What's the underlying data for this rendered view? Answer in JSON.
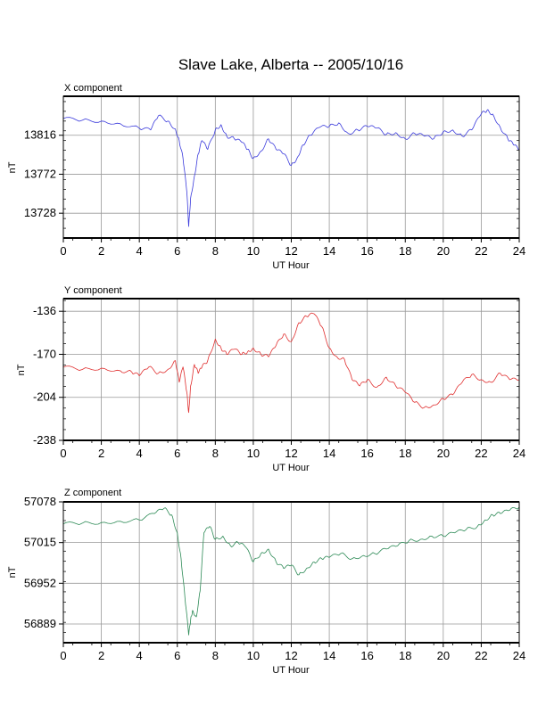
{
  "title": "Slave Lake, Alberta -- 2005/10/16",
  "colors": {
    "x": "#3b3bdc",
    "y": "#e03030",
    "z": "#2e8b57",
    "grid": "#999999",
    "axis": "#000000"
  },
  "chart_data": [
    {
      "type": "line",
      "title": "X component",
      "xlabel": "UT Hour",
      "ylabel": "nT",
      "xlim": [
        0,
        24
      ],
      "ylim": [
        13700,
        13860
      ],
      "xticks": [
        "0",
        "2",
        "4",
        "6",
        "8",
        "10",
        "12",
        "14",
        "16",
        "18",
        "20",
        "22",
        "24"
      ],
      "yticks": [
        "13816",
        "13772",
        "13728"
      ],
      "yticks_values": [
        13816,
        13772,
        13728
      ],
      "grid": true,
      "series": [
        {
          "color": "#3b3bdc",
          "x": [
            0,
            1,
            2,
            3,
            4,
            4.6,
            5,
            5.5,
            5.9,
            6.1,
            6.3,
            6.5,
            6.6,
            6.7,
            6.9,
            7.1,
            7.3,
            7.6,
            8,
            8.3,
            8.6,
            9,
            9.4,
            9.7,
            10,
            10.4,
            10.8,
            11.2,
            11.6,
            12,
            12.3,
            12.6,
            13,
            13.5,
            14,
            14.5,
            15,
            15.5,
            16,
            16.5,
            17,
            17.5,
            18,
            18.5,
            19,
            19.5,
            20,
            20.5,
            21,
            21.5,
            22,
            22.3,
            22.6,
            23,
            23.4,
            23.7,
            24
          ],
          "y": [
            13835,
            13833,
            13832,
            13829,
            13824,
            13822,
            13838,
            13832,
            13823,
            13810,
            13790,
            13752,
            13713,
            13745,
            13770,
            13795,
            13810,
            13800,
            13822,
            13828,
            13815,
            13812,
            13808,
            13800,
            13790,
            13798,
            13812,
            13800,
            13795,
            13782,
            13790,
            13805,
            13816,
            13825,
            13826,
            13830,
            13818,
            13822,
            13826,
            13824,
            13817,
            13819,
            13812,
            13818,
            13815,
            13812,
            13820,
            13822,
            13815,
            13822,
            13840,
            13844,
            13840,
            13825,
            13812,
            13805,
            13800
          ]
        }
      ]
    },
    {
      "type": "line",
      "title": "Y component",
      "xlabel": "UT Hour",
      "ylabel": "nT",
      "xlim": [
        0,
        24
      ],
      "ylim": [
        -238,
        -126
      ],
      "xticks": [
        "0",
        "2",
        "4",
        "6",
        "8",
        "10",
        "12",
        "14",
        "16",
        "18",
        "20",
        "22",
        "24"
      ],
      "yticks": [
        "-136",
        "-170",
        "-204",
        "-238"
      ],
      "yticks_values": [
        -136,
        -170,
        -204,
        -238
      ],
      "grid": true,
      "series": [
        {
          "color": "#e03030",
          "x": [
            0,
            1,
            2,
            3,
            3.6,
            4,
            4.5,
            5,
            5.5,
            5.9,
            6.1,
            6.3,
            6.5,
            6.6,
            6.7,
            6.9,
            7.1,
            7.3,
            7.6,
            8,
            8.3,
            8.6,
            9,
            9.4,
            9.7,
            10,
            10.4,
            10.8,
            11.2,
            11.6,
            12,
            12.4,
            12.8,
            13.2,
            13.6,
            14,
            14.4,
            14.8,
            15.2,
            15.6,
            16,
            16.5,
            17,
            17.5,
            18,
            18.5,
            19,
            19.5,
            20,
            20.5,
            21,
            21.5,
            22,
            22.5,
            23,
            23.5,
            24
          ],
          "y": [
            -180,
            -182,
            -181,
            -183,
            -184,
            -187,
            -180,
            -185,
            -182,
            -175,
            -192,
            -180,
            -200,
            -216,
            -195,
            -178,
            -185,
            -180,
            -175,
            -158,
            -165,
            -170,
            -166,
            -170,
            -168,
            -165,
            -170,
            -172,
            -163,
            -154,
            -160,
            -145,
            -140,
            -138,
            -148,
            -165,
            -172,
            -174,
            -190,
            -195,
            -190,
            -196,
            -188,
            -195,
            -200,
            -208,
            -212,
            -210,
            -205,
            -202,
            -192,
            -186,
            -190,
            -192,
            -185,
            -190,
            -190
          ]
        }
      ]
    },
    {
      "type": "line",
      "title": "Z component",
      "xlabel": "UT Hour",
      "ylabel": "nT",
      "xlim": [
        0,
        24
      ],
      "ylim": [
        56860,
        57078
      ],
      "xticks": [
        "0",
        "2",
        "4",
        "6",
        "8",
        "10",
        "12",
        "14",
        "16",
        "18",
        "20",
        "22",
        "24"
      ],
      "yticks": [
        "57078",
        "57015",
        "56952",
        "56889"
      ],
      "yticks_values": [
        57078,
        57015,
        56952,
        56889
      ],
      "grid": true,
      "series": [
        {
          "color": "#2e8b57",
          "x": [
            0,
            1,
            2,
            3,
            4,
            4.8,
            5.3,
            5.7,
            6,
            6.2,
            6.4,
            6.6,
            6.7,
            6.8,
            7,
            7.2,
            7.4,
            7.7,
            8,
            8.4,
            8.8,
            9.2,
            9.6,
            10,
            10.4,
            10.8,
            11.2,
            11.6,
            12,
            12.4,
            12.8,
            13.2,
            13.6,
            14,
            14.6,
            15.2,
            15.8,
            16.4,
            17,
            17.6,
            18.2,
            18.8,
            19.4,
            20,
            20.6,
            21.2,
            21.8,
            22.2,
            22.6,
            23,
            23.5,
            24
          ],
          "y": [
            57044,
            57045,
            57046,
            57048,
            57050,
            57060,
            57068,
            57058,
            57030,
            56990,
            56930,
            56872,
            56895,
            56910,
            56900,
            56940,
            57030,
            57040,
            57020,
            57025,
            57010,
            57015,
            57008,
            56985,
            56998,
            57005,
            56985,
            56975,
            56980,
            56965,
            56975,
            56985,
            56990,
            56992,
            56998,
            56990,
            56995,
            56998,
            57005,
            57010,
            57018,
            57020,
            57025,
            57025,
            57030,
            57035,
            57040,
            57050,
            57058,
            57060,
            57065,
            57070
          ]
        }
      ]
    }
  ]
}
